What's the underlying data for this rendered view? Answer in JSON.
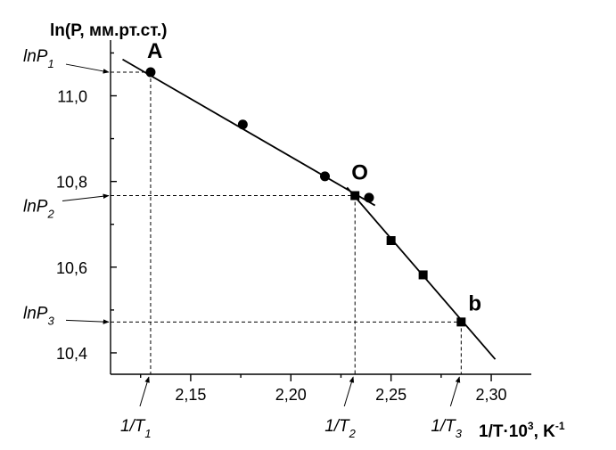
{
  "chart_data": {
    "type": "scatter",
    "ylabel": "ln(P, мм.рт.ст.)",
    "xlabel_main": "1/T·10",
    "xlabel_exp": "3",
    "xlabel_unit": ", K",
    "xlabel_unit_exp": "-1",
    "xlim": [
      2.11,
      2.32
    ],
    "ylim": [
      10.35,
      11.13
    ],
    "x_ticks": [
      {
        "value": 2.15,
        "label": "2,15"
      },
      {
        "value": 2.2,
        "label": "2,20"
      },
      {
        "value": 2.25,
        "label": "2,25"
      },
      {
        "value": 2.3,
        "label": "2,30"
      }
    ],
    "x_minor_ticks": [
      2.125,
      2.175,
      2.225,
      2.275
    ],
    "y_ticks": [
      {
        "value": 10.4,
        "label": "10,4"
      },
      {
        "value": 10.6,
        "label": "10,6"
      },
      {
        "value": 10.8,
        "label": "10,8"
      },
      {
        "value": 11.0,
        "label": "11,0"
      }
    ],
    "y_minor_ticks": [
      10.5,
      10.7,
      10.9,
      11.1
    ],
    "series": [
      {
        "marker": "circle",
        "x": [
          2.13,
          2.176,
          2.217,
          2.239
        ],
        "y": [
          11.055,
          10.933,
          10.812,
          10.762
        ]
      },
      {
        "marker": "square",
        "x": [
          2.232,
          2.25,
          2.266,
          2.285
        ],
        "y": [
          10.767,
          10.662,
          10.582,
          10.472
        ]
      }
    ],
    "fit_lines": [
      {
        "x": [
          2.116,
          2.242
        ],
        "y": [
          11.085,
          10.744
        ]
      },
      {
        "x": [
          2.228,
          2.302
        ],
        "y": [
          10.786,
          10.385
        ]
      }
    ],
    "point_labels": [
      {
        "text": "A",
        "x": 2.13,
        "y": 11.055
      },
      {
        "text": "O",
        "x": 2.232,
        "y": 10.767
      },
      {
        "text": "b",
        "x": 2.285,
        "y": 10.472
      }
    ],
    "y_annotations": [
      {
        "base": "lnP",
        "sub": "1",
        "y": 11.055
      },
      {
        "base": "lnP",
        "sub": "2",
        "y": 10.767
      },
      {
        "base": "lnP",
        "sub": "3",
        "y": 10.472
      }
    ],
    "x_annotations": [
      {
        "base": "1/T",
        "sub": "1",
        "x": 2.13
      },
      {
        "base": "1/T",
        "sub": "2",
        "x": 2.232
      },
      {
        "base": "1/T",
        "sub": "3",
        "x": 2.285
      }
    ],
    "grid": false,
    "legend": "none",
    "colors": {
      "ink": "#000000",
      "background": "#ffffff"
    }
  }
}
